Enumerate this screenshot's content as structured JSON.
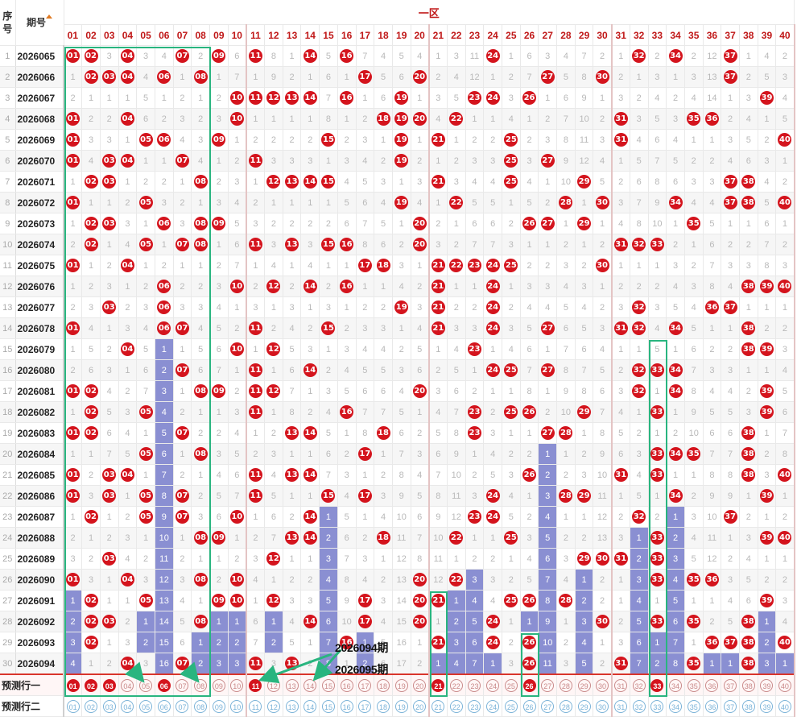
{
  "headers": {
    "serial_a": "序",
    "serial_b": "号",
    "period": "期号",
    "zone": "一区",
    "numbers": [
      "01",
      "02",
      "03",
      "04",
      "05",
      "06",
      "07",
      "08",
      "09",
      "10",
      "11",
      "12",
      "13",
      "14",
      "15",
      "16",
      "17",
      "18",
      "19",
      "20",
      "21",
      "22",
      "23",
      "24",
      "25",
      "26",
      "27",
      "28",
      "29",
      "30",
      "31",
      "32",
      "33",
      "34",
      "35",
      "36",
      "37",
      "38",
      "39",
      "40"
    ]
  },
  "rows": [
    {
      "serial": "1",
      "period": "2026065",
      "cells": [
        "01",
        "02",
        "3",
        "04",
        "3",
        "4",
        "07",
        "2",
        "09",
        "6",
        "11",
        "8",
        "1",
        "14",
        "5",
        "16",
        "7",
        "4",
        "5",
        "4",
        "1",
        "3",
        "11",
        "24",
        "1",
        "6",
        "3",
        "4",
        "7",
        "2",
        "1",
        "32",
        "2",
        "34",
        "2",
        "12",
        "37",
        "1",
        "4",
        "2"
      ]
    },
    {
      "serial": "2",
      "period": "2026066",
      "cells": [
        "1",
        "02",
        "03",
        "04",
        "4",
        "06",
        "1",
        "08",
        "1",
        "7",
        "1",
        "9",
        "2",
        "1",
        "6",
        "1",
        "17",
        "5",
        "6",
        "20",
        "2",
        "4",
        "12",
        "1",
        "2",
        "7",
        "27",
        "5",
        "8",
        "30",
        "2",
        "1",
        "3",
        "1",
        "3",
        "13",
        "37",
        "2",
        "5",
        "3"
      ]
    },
    {
      "serial": "3",
      "period": "2026067",
      "cells": [
        "2",
        "1",
        "1",
        "1",
        "5",
        "1",
        "2",
        "1",
        "2",
        "10",
        "11",
        "12",
        "13",
        "14",
        "7",
        "16",
        "1",
        "6",
        "19",
        "1",
        "3",
        "5",
        "23",
        "24",
        "3",
        "26",
        "1",
        "6",
        "9",
        "1",
        "3",
        "2",
        "4",
        "2",
        "4",
        "14",
        "1",
        "3",
        "39",
        "4"
      ]
    },
    {
      "serial": "4",
      "period": "2026068",
      "cells": [
        "01",
        "2",
        "2",
        "04",
        "6",
        "2",
        "3",
        "2",
        "3",
        "10",
        "1",
        "1",
        "1",
        "1",
        "8",
        "1",
        "2",
        "18",
        "19",
        "20",
        "4",
        "22",
        "1",
        "1",
        "4",
        "1",
        "2",
        "7",
        "10",
        "2",
        "31",
        "3",
        "5",
        "3",
        "35",
        "36",
        "2",
        "4",
        "1",
        "5"
      ]
    },
    {
      "serial": "5",
      "period": "2026069",
      "cells": [
        "01",
        "3",
        "3",
        "1",
        "05",
        "06",
        "4",
        "3",
        "09",
        "1",
        "2",
        "2",
        "2",
        "2",
        "15",
        "2",
        "3",
        "1",
        "19",
        "1",
        "21",
        "1",
        "2",
        "2",
        "25",
        "2",
        "3",
        "8",
        "11",
        "3",
        "31",
        "4",
        "6",
        "4",
        "1",
        "1",
        "3",
        "5",
        "2",
        "40"
      ]
    },
    {
      "serial": "6",
      "period": "2026070",
      "cells": [
        "01",
        "4",
        "03",
        "04",
        "1",
        "1",
        "07",
        "4",
        "1",
        "2",
        "11",
        "3",
        "3",
        "3",
        "1",
        "3",
        "4",
        "2",
        "19",
        "2",
        "1",
        "2",
        "3",
        "3",
        "25",
        "3",
        "27",
        "9",
        "12",
        "4",
        "1",
        "5",
        "7",
        "5",
        "2",
        "2",
        "4",
        "6",
        "3",
        "1"
      ]
    },
    {
      "serial": "7",
      "period": "2026071",
      "cells": [
        "1",
        "02",
        "03",
        "1",
        "2",
        "2",
        "1",
        "08",
        "2",
        "3",
        "1",
        "12",
        "13",
        "14",
        "15",
        "4",
        "5",
        "3",
        "1",
        "3",
        "21",
        "3",
        "4",
        "4",
        "25",
        "4",
        "1",
        "10",
        "29",
        "5",
        "2",
        "6",
        "8",
        "6",
        "3",
        "3",
        "37",
        "38",
        "4",
        "2"
      ]
    },
    {
      "serial": "8",
      "period": "2026072",
      "cells": [
        "01",
        "1",
        "1",
        "2",
        "05",
        "3",
        "2",
        "1",
        "3",
        "4",
        "2",
        "1",
        "1",
        "1",
        "1",
        "5",
        "6",
        "4",
        "19",
        "4",
        "1",
        "22",
        "5",
        "5",
        "1",
        "5",
        "2",
        "28",
        "1",
        "30",
        "3",
        "7",
        "9",
        "34",
        "4",
        "4",
        "37",
        "38",
        "5",
        "40"
      ]
    },
    {
      "serial": "9",
      "period": "2026073",
      "cells": [
        "1",
        "02",
        "03",
        "3",
        "1",
        "06",
        "3",
        "08",
        "09",
        "5",
        "3",
        "2",
        "2",
        "2",
        "2",
        "6",
        "7",
        "5",
        "1",
        "20",
        "2",
        "1",
        "6",
        "6",
        "2",
        "26",
        "27",
        "1",
        "29",
        "1",
        "4",
        "8",
        "10",
        "1",
        "35",
        "5",
        "1",
        "1",
        "6",
        "1"
      ]
    },
    {
      "serial": "10",
      "period": "2026074",
      "cells": [
        "2",
        "02",
        "1",
        "4",
        "05",
        "1",
        "07",
        "08",
        "1",
        "6",
        "11",
        "3",
        "13",
        "3",
        "15",
        "16",
        "8",
        "6",
        "2",
        "20",
        "3",
        "2",
        "7",
        "7",
        "3",
        "1",
        "1",
        "2",
        "1",
        "2",
        "31",
        "32",
        "33",
        "2",
        "1",
        "6",
        "2",
        "2",
        "7",
        "2"
      ]
    },
    {
      "serial": "11",
      "period": "2026075",
      "cells": [
        "01",
        "1",
        "2",
        "04",
        "1",
        "2",
        "1",
        "1",
        "2",
        "7",
        "1",
        "4",
        "1",
        "4",
        "1",
        "1",
        "17",
        "18",
        "3",
        "1",
        "21",
        "22",
        "23",
        "24",
        "25",
        "2",
        "2",
        "3",
        "2",
        "30",
        "1",
        "1",
        "1",
        "3",
        "2",
        "7",
        "3",
        "3",
        "8",
        "3"
      ]
    },
    {
      "serial": "12",
      "period": "2026076",
      "cells": [
        "1",
        "2",
        "3",
        "1",
        "2",
        "06",
        "2",
        "2",
        "3",
        "10",
        "2",
        "12",
        "2",
        "14",
        "2",
        "16",
        "1",
        "1",
        "4",
        "2",
        "21",
        "1",
        "1",
        "24",
        "1",
        "3",
        "3",
        "4",
        "3",
        "1",
        "2",
        "2",
        "2",
        "4",
        "3",
        "8",
        "4",
        "38",
        "39",
        "40"
      ]
    },
    {
      "serial": "13",
      "period": "2026077",
      "cells": [
        "2",
        "3",
        "03",
        "2",
        "3",
        "06",
        "3",
        "3",
        "4",
        "1",
        "3",
        "1",
        "3",
        "1",
        "3",
        "1",
        "2",
        "2",
        "19",
        "3",
        "21",
        "2",
        "2",
        "24",
        "2",
        "4",
        "4",
        "5",
        "4",
        "2",
        "3",
        "32",
        "3",
        "5",
        "4",
        "36",
        "37",
        "1",
        "1",
        "1"
      ]
    },
    {
      "serial": "14",
      "period": "2026078",
      "cells": [
        "01",
        "4",
        "1",
        "3",
        "4",
        "06",
        "07",
        "4",
        "5",
        "2",
        "11",
        "2",
        "4",
        "2",
        "15",
        "2",
        "3",
        "3",
        "1",
        "4",
        "21",
        "3",
        "3",
        "24",
        "3",
        "5",
        "27",
        "6",
        "5",
        "3",
        "31",
        "32",
        "4",
        "34",
        "5",
        "1",
        "1",
        "38",
        "2",
        "2"
      ]
    },
    {
      "serial": "15",
      "period": "2026079",
      "cells": [
        "1",
        "5",
        "2",
        "04",
        "5",
        "1",
        "1",
        "5",
        "6",
        "10",
        "1",
        "12",
        "5",
        "3",
        "1",
        "3",
        "4",
        "4",
        "2",
        "5",
        "1",
        "4",
        "23",
        "1",
        "4",
        "6",
        "1",
        "7",
        "6",
        "4",
        "1",
        "1",
        "5",
        "1",
        "6",
        "2",
        "2",
        "38",
        "39",
        "3"
      ]
    },
    {
      "serial": "16",
      "period": "2026080",
      "cells": [
        "2",
        "6",
        "3",
        "1",
        "6",
        "2",
        "07",
        "6",
        "7",
        "1",
        "11",
        "1",
        "6",
        "14",
        "2",
        "4",
        "5",
        "5",
        "3",
        "6",
        "2",
        "5",
        "1",
        "24",
        "25",
        "7",
        "27",
        "8",
        "7",
        "5",
        "2",
        "32",
        "33",
        "34",
        "7",
        "3",
        "3",
        "1",
        "1",
        "4"
      ]
    },
    {
      "serial": "17",
      "period": "2026081",
      "cells": [
        "01",
        "02",
        "4",
        "2",
        "7",
        "3",
        "1",
        "08",
        "09",
        "2",
        "11",
        "12",
        "7",
        "1",
        "3",
        "5",
        "6",
        "6",
        "4",
        "20",
        "3",
        "6",
        "2",
        "1",
        "1",
        "8",
        "1",
        "9",
        "8",
        "6",
        "3",
        "32",
        "1",
        "34",
        "8",
        "4",
        "4",
        "2",
        "39",
        "5"
      ]
    },
    {
      "serial": "18",
      "period": "2026082",
      "cells": [
        "1",
        "02",
        "5",
        "3",
        "05",
        "4",
        "2",
        "1",
        "1",
        "3",
        "11",
        "1",
        "8",
        "2",
        "4",
        "16",
        "7",
        "7",
        "5",
        "1",
        "4",
        "7",
        "23",
        "2",
        "25",
        "26",
        "2",
        "10",
        "29",
        "7",
        "4",
        "1",
        "33",
        "1",
        "9",
        "5",
        "5",
        "3",
        "39",
        "6"
      ]
    },
    {
      "serial": "19",
      "period": "2026083",
      "cells": [
        "01",
        "02",
        "6",
        "4",
        "1",
        "5",
        "07",
        "2",
        "2",
        "4",
        "1",
        "2",
        "13",
        "14",
        "5",
        "1",
        "8",
        "18",
        "6",
        "2",
        "5",
        "8",
        "23",
        "3",
        "1",
        "1",
        "27",
        "28",
        "1",
        "8",
        "5",
        "2",
        "1",
        "2",
        "10",
        "6",
        "6",
        "38",
        "1",
        "7"
      ]
    },
    {
      "serial": "20",
      "period": "2026084",
      "cells": [
        "1",
        "1",
        "7",
        "5",
        "05",
        "6",
        "1",
        "08",
        "3",
        "5",
        "2",
        "3",
        "1",
        "1",
        "6",
        "2",
        "17",
        "1",
        "7",
        "3",
        "6",
        "9",
        "1",
        "4",
        "2",
        "2",
        "1",
        "1",
        "2",
        "9",
        "6",
        "3",
        "33",
        "34",
        "35",
        "7",
        "7",
        "38",
        "2",
        "8"
      ]
    },
    {
      "serial": "21",
      "period": "2026085",
      "cells": [
        "01",
        "2",
        "03",
        "04",
        "1",
        "7",
        "2",
        "1",
        "4",
        "6",
        "11",
        "4",
        "13",
        "14",
        "7",
        "3",
        "1",
        "2",
        "8",
        "4",
        "7",
        "10",
        "2",
        "5",
        "3",
        "26",
        "2",
        "2",
        "3",
        "10",
        "31",
        "4",
        "33",
        "1",
        "1",
        "8",
        "8",
        "38",
        "3",
        "40"
      ]
    },
    {
      "serial": "22",
      "period": "2026086",
      "cells": [
        "01",
        "3",
        "03",
        "1",
        "05",
        "8",
        "07",
        "2",
        "5",
        "7",
        "11",
        "5",
        "1",
        "1",
        "15",
        "4",
        "17",
        "3",
        "9",
        "5",
        "8",
        "11",
        "3",
        "24",
        "4",
        "1",
        "3",
        "28",
        "29",
        "11",
        "1",
        "5",
        "1",
        "34",
        "2",
        "9",
        "9",
        "1",
        "39",
        "1"
      ]
    },
    {
      "serial": "23",
      "period": "2026087",
      "cells": [
        "1",
        "02",
        "1",
        "2",
        "05",
        "9",
        "07",
        "3",
        "6",
        "10",
        "1",
        "6",
        "2",
        "14",
        "1",
        "5",
        "1",
        "4",
        "10",
        "6",
        "9",
        "12",
        "23",
        "24",
        "5",
        "2",
        "4",
        "1",
        "1",
        "12",
        "2",
        "32",
        "2",
        "1",
        "3",
        "10",
        "37",
        "2",
        "1",
        "2"
      ]
    },
    {
      "serial": "24",
      "period": "2026088",
      "cells": [
        "2",
        "1",
        "2",
        "3",
        "1",
        "10",
        "1",
        "08",
        "09",
        "1",
        "2",
        "7",
        "13",
        "14",
        "2",
        "6",
        "2",
        "18",
        "11",
        "7",
        "10",
        "22",
        "1",
        "1",
        "25",
        "3",
        "5",
        "2",
        "2",
        "13",
        "3",
        "1",
        "33",
        "2",
        "4",
        "11",
        "1",
        "3",
        "39",
        "40"
      ]
    },
    {
      "serial": "25",
      "period": "2026089",
      "cells": [
        "3",
        "2",
        "03",
        "4",
        "2",
        "11",
        "2",
        "1",
        "1",
        "2",
        "3",
        "12",
        "1",
        "1",
        "3",
        "7",
        "3",
        "1",
        "12",
        "8",
        "11",
        "1",
        "2",
        "2",
        "1",
        "4",
        "6",
        "3",
        "29",
        "30",
        "31",
        "2",
        "33",
        "3",
        "5",
        "12",
        "2",
        "4",
        "1",
        "1"
      ]
    },
    {
      "serial": "26",
      "period": "2026090",
      "cells": [
        "01",
        "3",
        "1",
        "04",
        "3",
        "12",
        "3",
        "08",
        "2",
        "10",
        "4",
        "1",
        "2",
        "2",
        "4",
        "8",
        "4",
        "2",
        "13",
        "20",
        "12",
        "22",
        "3",
        "3",
        "2",
        "5",
        "7",
        "4",
        "1",
        "2",
        "1",
        "3",
        "33",
        "4",
        "35",
        "36",
        "3",
        "5",
        "2",
        "2"
      ]
    },
    {
      "serial": "27",
      "period": "2026091",
      "cells": [
        "1",
        "02",
        "1",
        "1",
        "05",
        "13",
        "4",
        "1",
        "09",
        "10",
        "1",
        "12",
        "3",
        "3",
        "5",
        "9",
        "17",
        "3",
        "14",
        "20",
        "21",
        "1",
        "4",
        "4",
        "25",
        "26",
        "8",
        "28",
        "2",
        "2",
        "1",
        "4",
        "1",
        "5",
        "1",
        "1",
        "4",
        "6",
        "39",
        "3"
      ]
    },
    {
      "serial": "28",
      "period": "2026092",
      "cells": [
        "2",
        "02",
        "03",
        "2",
        "1",
        "14",
        "5",
        "08",
        "1",
        "1",
        "6",
        "1",
        "4",
        "14",
        "6",
        "10",
        "17",
        "4",
        "15",
        "20",
        "1",
        "2",
        "5",
        "24",
        "1",
        "1",
        "9",
        "1",
        "3",
        "30",
        "2",
        "5",
        "33",
        "6",
        "35",
        "2",
        "5",
        "38",
        "1",
        "4"
      ]
    },
    {
      "serial": "29",
      "period": "2026093",
      "cells": [
        "3",
        "02",
        "1",
        "3",
        "2",
        "15",
        "6",
        "1",
        "2",
        "2",
        "7",
        "2",
        "5",
        "1",
        "7",
        "16",
        "1",
        "5",
        "16",
        "1",
        "21",
        "3",
        "6",
        "24",
        "2",
        "26",
        "10",
        "2",
        "4",
        "1",
        "3",
        "6",
        "1",
        "7",
        "1",
        "36",
        "37",
        "38",
        "2",
        "40"
      ]
    },
    {
      "serial": "30",
      "period": "2026094",
      "cells": [
        "4",
        "1",
        "2",
        "04",
        "3",
        "16",
        "07",
        "2",
        "3",
        "3",
        "11",
        "3",
        "13",
        "2",
        "8",
        "1",
        "2",
        "6",
        "17",
        "2",
        "1",
        "4",
        "7",
        "1",
        "3",
        "26",
        "11",
        "3",
        "5",
        "2",
        "31",
        "7",
        "2",
        "8",
        "35",
        "1",
        "1",
        "38",
        "3",
        "1"
      ]
    }
  ],
  "predictions": [
    {
      "label": "预测行一",
      "selected": [
        "01",
        "02",
        "03",
        "06",
        "11",
        "21",
        "26",
        "33"
      ]
    },
    {
      "label": "预测行二",
      "selected": []
    }
  ],
  "annotations": {
    "label_current": "2026094期",
    "label_next": "2026095期"
  },
  "colors": {
    "ball_red": "#d4141d",
    "miss_bar": "#8a8fd2",
    "highlight_box": "#29b57f",
    "header_red": "#c01818"
  }
}
